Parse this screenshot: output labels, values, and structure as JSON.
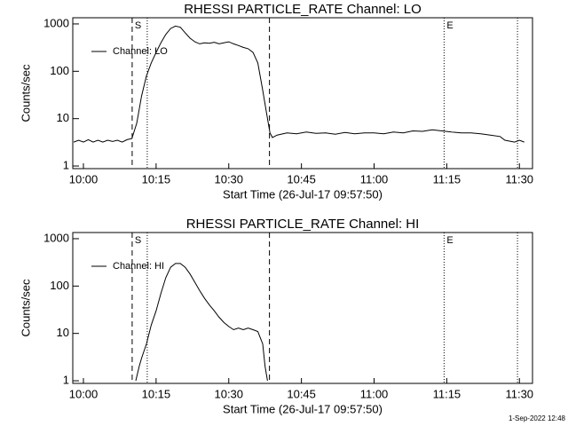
{
  "chart_data": [
    {
      "type": "line",
      "title": "RHESSI PARTICLE_RATE Channel: LO",
      "xlabel": "Start Time (26-Jul-17 09:57:50)",
      "ylabel": "Counts/sec",
      "x": [
        -2,
        -1,
        0,
        1,
        2,
        3,
        4,
        5,
        6,
        7,
        8,
        9,
        10,
        11,
        12,
        13,
        14,
        15,
        16,
        17,
        18,
        19,
        20,
        21,
        22,
        23,
        24,
        25,
        26,
        27,
        28,
        29,
        30,
        31,
        32,
        33,
        34,
        35,
        36,
        37,
        38,
        38.5,
        39,
        40,
        42,
        44,
        46,
        48,
        50,
        52,
        54,
        56,
        58,
        60,
        62,
        64,
        66,
        68,
        70,
        72,
        74,
        76,
        78,
        80,
        82,
        84,
        86,
        87,
        89,
        90,
        91
      ],
      "series": [
        {
          "name": "Channel: LO",
          "color": "#000000",
          "values": [
            3.2,
            3.5,
            3.2,
            3.6,
            3.2,
            3.5,
            3.2,
            3.5,
            3.3,
            3.5,
            3.2,
            3.6,
            3.8,
            8,
            30,
            80,
            150,
            250,
            400,
            600,
            800,
            900,
            850,
            650,
            500,
            420,
            380,
            400,
            390,
            410,
            380,
            400,
            420,
            380,
            350,
            320,
            300,
            250,
            150,
            40,
            10,
            5,
            4,
            4.5,
            5,
            4.8,
            5.2,
            4.9,
            5,
            4.7,
            5.1,
            4.8,
            5,
            5,
            4.8,
            5.2,
            5,
            5.5,
            5.4,
            5.8,
            5.5,
            5.2,
            5,
            5,
            4.8,
            4.5,
            4.2,
            3.5,
            3.2,
            3.5,
            3.2
          ]
        }
      ],
      "xlim": [
        -2.2,
        92.7
      ],
      "xticks": [
        {
          "value": 0,
          "label": "10:00"
        },
        {
          "value": 15,
          "label": "10:15"
        },
        {
          "value": 30,
          "label": "10:30"
        },
        {
          "value": 45,
          "label": "10:45"
        },
        {
          "value": 60,
          "label": "11:00"
        },
        {
          "value": 75,
          "label": "11:15"
        },
        {
          "value": 90,
          "label": "11:30"
        }
      ],
      "ylim": [
        0.88,
        1350
      ],
      "yticks": [
        1,
        10,
        100,
        1000
      ],
      "log_y": true,
      "vlines": [
        {
          "x": 10.06,
          "style": "dashed"
        },
        {
          "x": 13.17,
          "style": "dotted"
        },
        {
          "x": 38.4,
          "style": "dashed"
        },
        {
          "x": 74.45,
          "style": "dotted"
        },
        {
          "x": 89.6,
          "style": "dotted"
        }
      ],
      "annotations": [
        {
          "text": "S",
          "x": 10.06
        },
        {
          "text": "E",
          "x": 74.45
        }
      ]
    },
    {
      "type": "line",
      "title": "RHESSI PARTICLE_RATE Channel: HI",
      "xlabel": "Start Time (26-Jul-17 09:57:50)",
      "ylabel": "Counts/sec",
      "x": [
        10.8,
        11.5,
        12,
        13,
        14,
        15,
        16,
        17,
        18,
        19,
        20,
        21,
        22,
        23,
        24,
        25,
        26,
        27,
        28,
        29,
        30,
        31,
        32,
        33,
        34,
        35,
        36,
        37,
        37.5,
        38
      ],
      "series": [
        {
          "name": "Channel: HI",
          "color": "#000000",
          "values": [
            1,
            2,
            3,
            6,
            15,
            30,
            70,
            150,
            250,
            300,
            300,
            250,
            180,
            120,
            80,
            55,
            40,
            30,
            22,
            17,
            14,
            12,
            13,
            12,
            13,
            12,
            11,
            6,
            2,
            1
          ]
        }
      ],
      "xlim": [
        -2.2,
        92.7
      ],
      "xticks": [
        {
          "value": 0,
          "label": "10:00"
        },
        {
          "value": 15,
          "label": "10:15"
        },
        {
          "value": 30,
          "label": "10:30"
        },
        {
          "value": 45,
          "label": "10:45"
        },
        {
          "value": 60,
          "label": "11:00"
        },
        {
          "value": 75,
          "label": "11:15"
        },
        {
          "value": 90,
          "label": "11:30"
        }
      ],
      "ylim": [
        0.88,
        1350
      ],
      "yticks": [
        1,
        10,
        100,
        1000
      ],
      "log_y": true,
      "vlines": [
        {
          "x": 10.06,
          "style": "dashed"
        },
        {
          "x": 13.17,
          "style": "dotted"
        },
        {
          "x": 38.4,
          "style": "dashed"
        },
        {
          "x": 74.45,
          "style": "dotted"
        },
        {
          "x": 89.6,
          "style": "dotted"
        }
      ],
      "annotations": [
        {
          "text": "S",
          "x": 10.06
        },
        {
          "text": "E",
          "x": 74.45
        }
      ]
    }
  ],
  "timestamp": "1-Sep-2022 12:48"
}
